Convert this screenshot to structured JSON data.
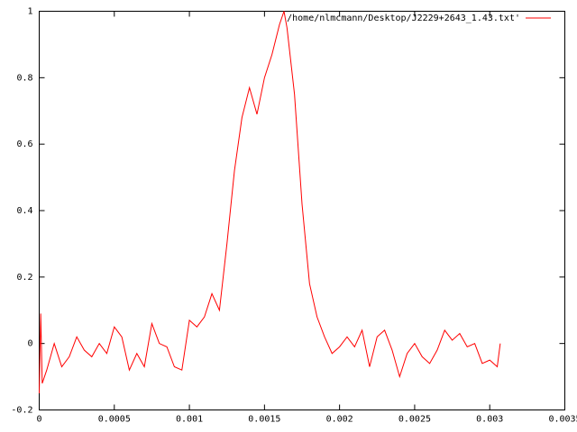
{
  "chart_data": {
    "type": "line",
    "x": [
      0,
      1e-05,
      2e-05,
      5e-05,
      0.0001,
      0.00015,
      0.0002,
      0.00025,
      0.0003,
      0.00035,
      0.0004,
      0.00045,
      0.0005,
      0.00055,
      0.0006,
      0.00065,
      0.0007,
      0.00075,
      0.0008,
      0.00085,
      0.0009,
      0.00095,
      0.001,
      0.00105,
      0.0011,
      0.00115,
      0.0012,
      0.00125,
      0.0013,
      0.00135,
      0.0014,
      0.00145,
      0.0015,
      0.00155,
      0.0016,
      0.00163,
      0.00165,
      0.0017,
      0.00175,
      0.0018,
      0.00185,
      0.0019,
      0.00195,
      0.002,
      0.00205,
      0.0021,
      0.00215,
      0.0022,
      0.00225,
      0.0023,
      0.00235,
      0.0024,
      0.00245,
      0.0025,
      0.00255,
      0.0026,
      0.00265,
      0.0027,
      0.00275,
      0.0028,
      0.00285,
      0.0029,
      0.00295,
      0.003,
      0.00305,
      0.00307
    ],
    "series": [
      {
        "name": "/home/nlmcmann/Desktop/J2229+2643_1.43.txt'",
        "color": "#ff0000",
        "values": [
          -0.15,
          0.09,
          -0.12,
          -0.08,
          0.0,
          -0.07,
          -0.04,
          0.02,
          -0.02,
          -0.04,
          0.0,
          -0.03,
          0.05,
          0.02,
          -0.08,
          -0.03,
          -0.07,
          0.06,
          0.0,
          -0.01,
          -0.07,
          -0.08,
          0.07,
          0.05,
          0.08,
          0.15,
          0.1,
          0.3,
          0.52,
          0.68,
          0.77,
          0.69,
          0.8,
          0.87,
          0.96,
          1.0,
          0.95,
          0.75,
          0.42,
          0.18,
          0.08,
          0.02,
          -0.03,
          -0.01,
          0.02,
          -0.01,
          0.04,
          -0.07,
          0.02,
          0.04,
          -0.02,
          -0.1,
          -0.03,
          0.0,
          -0.04,
          -0.06,
          -0.02,
          0.04,
          0.01,
          0.03,
          -0.01,
          0.0,
          -0.06,
          -0.05,
          -0.07,
          0.0
        ]
      }
    ],
    "xlim": [
      0,
      0.0035
    ],
    "xticks": [
      0,
      0.0005,
      0.001,
      0.0015,
      0.002,
      0.0025,
      0.003,
      0.0035
    ],
    "ylim": [
      -0.2,
      1
    ],
    "yticks": [
      -0.2,
      0,
      0.2,
      0.4,
      0.6,
      0.8,
      1
    ],
    "legend": "top right"
  }
}
